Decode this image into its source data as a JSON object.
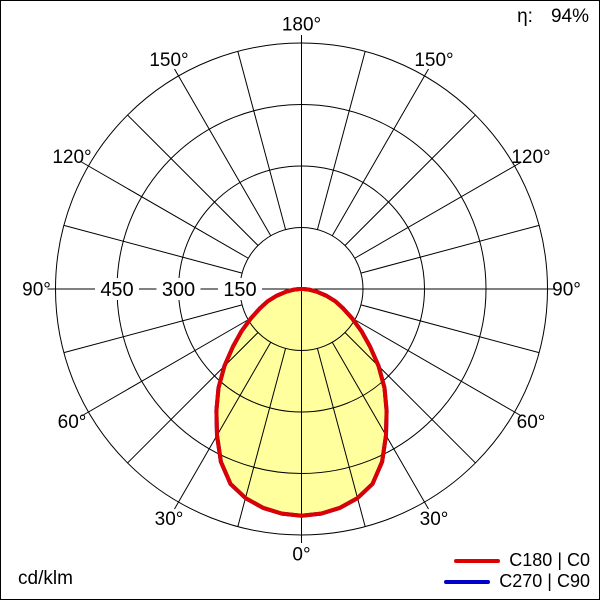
{
  "header": {
    "eta_label": "η:",
    "eta_value": "94%"
  },
  "footer": {
    "units": "cd/klm"
  },
  "legend": {
    "position": "bottom-right",
    "entries": [
      {
        "label": "C180 | C0",
        "color": "#dd0000"
      },
      {
        "label": "C270 | C90",
        "color": "#0000cc"
      }
    ]
  },
  "chart_data": {
    "type": "polar",
    "subtype": "luminous-intensity-distribution",
    "units": "cd/klm",
    "efficiency": "94%",
    "angle_convention": "0° at nadir (bottom), 180° at zenith (top), curve mirrored left/right",
    "r_max": 600,
    "r_tick_step": 150,
    "rings": [
      150,
      300,
      450,
      600
    ],
    "ring_labels": [
      "450",
      "300",
      "150"
    ],
    "ring_label_values": [
      450,
      300,
      150
    ],
    "spoke_step_deg": 15,
    "angle_label_step_deg": 30,
    "angle_label_degs": [
      0,
      30,
      60,
      90,
      120,
      150,
      180
    ],
    "angle_labels": [
      "0°",
      "30°",
      "60°",
      "90°",
      "120°",
      "150°",
      "180°"
    ],
    "grid": true,
    "fill_color": "#ffff9d",
    "series": [
      {
        "name": "C180 | C0",
        "color": "#dd0000",
        "mirrored": true,
        "angles_deg": [
          0,
          5,
          10,
          15,
          20,
          25,
          30,
          35,
          40,
          45,
          50,
          55,
          60,
          65,
          70,
          75,
          80,
          85,
          90
        ],
        "values": [
          553,
          550,
          542,
          528,
          506,
          465,
          412,
          362,
          315,
          266,
          218,
          178,
          142,
          112,
          88,
          62,
          38,
          18,
          5
        ]
      },
      {
        "name": "C270 | C90",
        "color": "#0000cc",
        "mirrored": true,
        "angles_deg": [
          0,
          5,
          10,
          15,
          20,
          25,
          30,
          35,
          40,
          45,
          50,
          55,
          60,
          65,
          70,
          75,
          80,
          85,
          90
        ],
        "values": [
          553,
          550,
          542,
          528,
          506,
          465,
          412,
          362,
          315,
          266,
          218,
          178,
          142,
          112,
          88,
          62,
          38,
          18,
          5
        ]
      }
    ]
  }
}
